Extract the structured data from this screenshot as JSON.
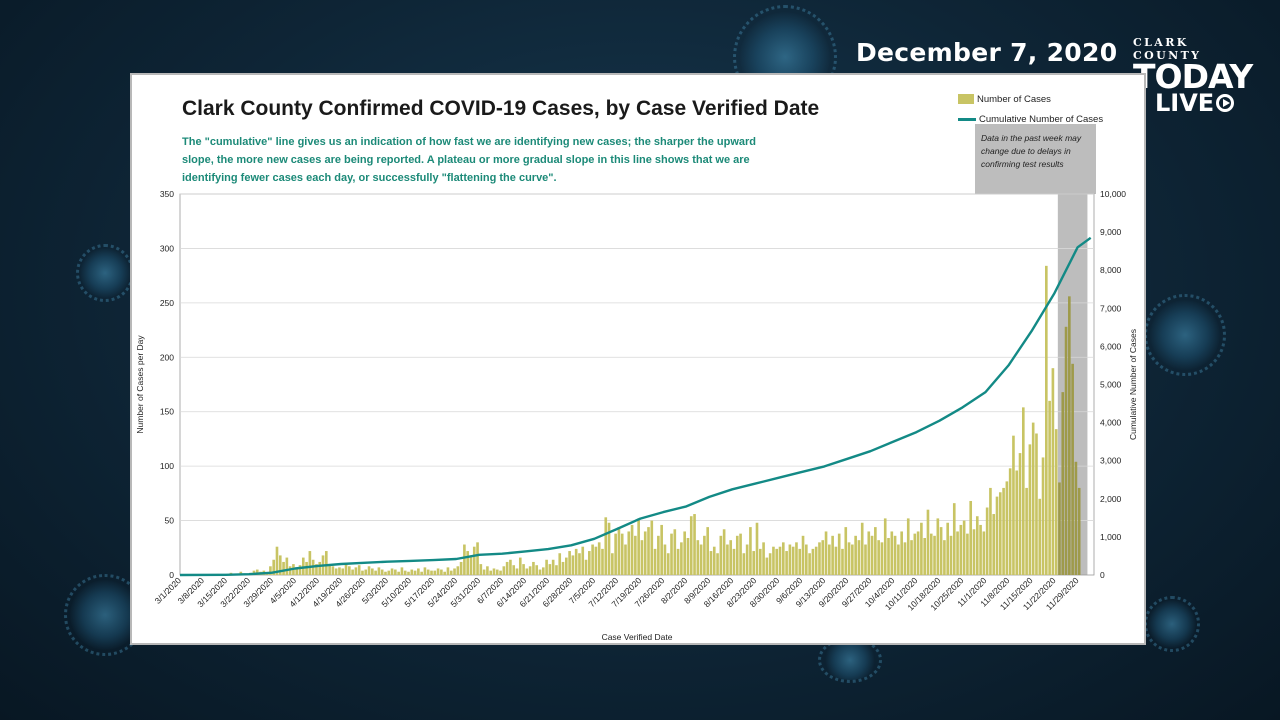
{
  "header": {
    "date": "December 7, 2020",
    "logo": {
      "county": "CLARK COUNTY",
      "today": "TODAY",
      "live": "LIVE"
    }
  },
  "colors": {
    "bars": "#c8c464",
    "bars_recent": "#9e9a4a",
    "line": "#138a86",
    "recent_band": "#bdbdbd"
  },
  "icons": [
    "play-icon",
    "virus-icon"
  ],
  "chart_data": {
    "type": "bar",
    "title": "Clark County Confirmed COVID-19 Cases, by Case Verified Date",
    "subtitle_lines": [
      "The \"cumulative\" line gives  us an indication of how fast we are identifying new cases; the sharper the upward",
      "slope, the more new cases are being reported. A plateau or more gradual slope in this line shows that we are",
      "identifying fewer cases each day, or successfully \"flattening the curve\"."
    ],
    "note": "Data in the past week may change due to delays in confirming test results",
    "xlabel": "Case Verified Date",
    "ylabel": "Number of Cases per Day",
    "y2label": "Cumulative Number of Cases",
    "ylim": [
      0,
      350
    ],
    "y2lim": [
      0,
      10000
    ],
    "yticks": [
      0,
      50,
      100,
      150,
      200,
      250,
      300,
      350
    ],
    "y2ticks": [
      "0",
      "1,000",
      "2,000",
      "3,000",
      "4,000",
      "5,000",
      "6,000",
      "7,000",
      "8,000",
      "9,000",
      "10,000"
    ],
    "x_tick_labels": [
      "3/1/2020",
      "3/8/2020",
      "3/15/2020",
      "3/22/2020",
      "3/29/2020",
      "4/5/2020",
      "4/12/2020",
      "4/19/2020",
      "4/26/2020",
      "5/3/2020",
      "5/10/2020",
      "5/17/2020",
      "5/24/2020",
      "5/31/2020",
      "6/7/2020",
      "6/14/2020",
      "6/21/2020",
      "6/28/2020",
      "7/5/2020",
      "7/12/2020",
      "7/19/2020",
      "7/26/2020",
      "8/2/2020",
      "8/9/2020",
      "8/16/2020",
      "8/23/2020",
      "8/30/2020",
      "9/6/2020",
      "9/13/2020",
      "9/20/2020",
      "9/27/2020",
      "10/4/2020",
      "10/11/2020",
      "10/18/2020",
      "10/25/2020",
      "11/1/2020",
      "11/8/2020",
      "11/15/2020",
      "11/22/2020",
      "11/29/2020"
    ],
    "grid": true,
    "legend_position": "top-right",
    "series": [
      {
        "name": "Number of Cases",
        "type": "bar",
        "weeks": [
          [
            0,
            0,
            0,
            0,
            0,
            0,
            0
          ],
          [
            0,
            0,
            0,
            0,
            1,
            0,
            0
          ],
          [
            1,
            2,
            0,
            1,
            3,
            0,
            1
          ],
          [
            2,
            4,
            5,
            3,
            4,
            2,
            8
          ],
          [
            14,
            26,
            18,
            12,
            16,
            8,
            10
          ],
          [
            6,
            9,
            16,
            12,
            22,
            14,
            10
          ],
          [
            12,
            18,
            22,
            10,
            8,
            6,
            7
          ],
          [
            6,
            10,
            8,
            5,
            7,
            9,
            4
          ],
          [
            5,
            8,
            6,
            4,
            7,
            5,
            3
          ],
          [
            4,
            6,
            5,
            3,
            7,
            4,
            3
          ],
          [
            5,
            4,
            6,
            3,
            7,
            5,
            4
          ],
          [
            4,
            6,
            5,
            3,
            7,
            4,
            6
          ],
          [
            8,
            12,
            28,
            22,
            18,
            26,
            30
          ],
          [
            10,
            5,
            8,
            4,
            6,
            5,
            4
          ],
          [
            8,
            12,
            14,
            9,
            6,
            16,
            10
          ],
          [
            6,
            8,
            12,
            9,
            5,
            7,
            14
          ],
          [
            10,
            14,
            9,
            20,
            12,
            16,
            22
          ],
          [
            18,
            24,
            20,
            26,
            14,
            22,
            28
          ],
          [
            26,
            30,
            24,
            53,
            48,
            20,
            38
          ],
          [
            44,
            38,
            28,
            40,
            46,
            36,
            52
          ],
          [
            32,
            40,
            44,
            50,
            24,
            36,
            46
          ],
          [
            28,
            20,
            38,
            42,
            24,
            30,
            40
          ],
          [
            34,
            54,
            56,
            32,
            28,
            36,
            44
          ],
          [
            22,
            26,
            20,
            36,
            42,
            28,
            32
          ],
          [
            24,
            36,
            38,
            20,
            28,
            44,
            22
          ],
          [
            48,
            24,
            30,
            16,
            20,
            26,
            24
          ],
          [
            26,
            30,
            22,
            28,
            26,
            30,
            24
          ],
          [
            36,
            28,
            20,
            24,
            26,
            30,
            32
          ],
          [
            40,
            28,
            36,
            26,
            38,
            24,
            44
          ],
          [
            30,
            28,
            36,
            32,
            48,
            28,
            40
          ],
          [
            36,
            44,
            32,
            30,
            52,
            34,
            40
          ],
          [
            36,
            28,
            40,
            30,
            52,
            32,
            38
          ],
          [
            40,
            48,
            34,
            60,
            38,
            36,
            52
          ],
          [
            44,
            32,
            48,
            36,
            66,
            40,
            46
          ],
          [
            50,
            38,
            68,
            42,
            54,
            46,
            40
          ],
          [
            62,
            80,
            56,
            72,
            76,
            80,
            86
          ],
          [
            98,
            128,
            96,
            112,
            154,
            80,
            120
          ],
          [
            140,
            130,
            70,
            108,
            284,
            160,
            190
          ],
          [
            134,
            85,
            168,
            228,
            256,
            194,
            104
          ],
          [
            80
          ]
        ],
        "peak": {
          "date": "11/18/2020",
          "value": 284
        }
      },
      {
        "name": "Cumulative Number of Cases",
        "type": "line",
        "axis": "right",
        "dates": [
          "3/1/2020",
          "3/15/2020",
          "3/22/2020",
          "3/29/2020",
          "4/5/2020",
          "4/12/2020",
          "4/19/2020",
          "4/26/2020",
          "5/3/2020",
          "5/10/2020",
          "5/17/2020",
          "5/24/2020",
          "5/31/2020",
          "6/7/2020",
          "6/14/2020",
          "6/21/2020",
          "6/28/2020",
          "7/5/2020",
          "7/12/2020",
          "7/19/2020",
          "7/26/2020",
          "8/2/2020",
          "8/9/2020",
          "8/16/2020",
          "8/23/2020",
          "8/30/2020",
          "9/6/2020",
          "9/13/2020",
          "9/20/2020",
          "9/27/2020",
          "10/4/2020",
          "10/11/2020",
          "10/18/2020",
          "10/25/2020",
          "11/1/2020",
          "11/8/2020",
          "11/15/2020",
          "11/22/2020",
          "11/29/2020",
          "12/3/2020"
        ],
        "values": [
          0,
          5,
          20,
          60,
          170,
          240,
          290,
          320,
          350,
          370,
          390,
          420,
          530,
          560,
          620,
          680,
          780,
          950,
          1210,
          1480,
          1650,
          1800,
          2050,
          2250,
          2400,
          2550,
          2700,
          2850,
          3050,
          3250,
          3500,
          3750,
          4050,
          4400,
          4800,
          5500,
          6400,
          7400,
          8600,
          8850
        ]
      }
    ],
    "recent_period": {
      "start": "11/23/2020",
      "end": "12/1/2020"
    }
  }
}
